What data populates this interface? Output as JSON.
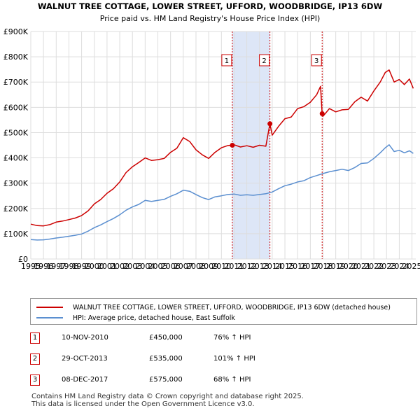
{
  "chart_data": {
    "type": "line",
    "title": "WALNUT TREE COTTAGE, LOWER STREET, UFFORD, WOODBRIDGE, IP13 6DW",
    "subtitle": "Price paid vs. HM Land Registry's House Price Index (HPI)",
    "xlim": [
      1995,
      2025.3
    ],
    "ylim": [
      0,
      900000
    ],
    "ytick_values": [
      0,
      100000,
      200000,
      300000,
      400000,
      500000,
      600000,
      700000,
      800000,
      900000
    ],
    "ytick_labels": [
      "£0",
      "£100K",
      "£200K",
      "£300K",
      "£400K",
      "£500K",
      "£600K",
      "£700K",
      "£800K",
      "£900K"
    ],
    "xtick_values": [
      1995,
      1996,
      1997,
      1998,
      1999,
      2000,
      2001,
      2002,
      2003,
      2004,
      2005,
      2006,
      2007,
      2008,
      2009,
      2010,
      2011,
      2012,
      2013,
      2014,
      2015,
      2016,
      2017,
      2018,
      2019,
      2020,
      2021,
      2022,
      2023,
      2024,
      2025
    ],
    "xtick_labels": [
      "1995",
      "1996",
      "1997",
      "1998",
      "1999",
      "2000",
      "2001",
      "2002",
      "2003",
      "2004",
      "2005",
      "2006",
      "2007",
      "2008",
      "2009",
      "2010",
      "2011",
      "2012",
      "2013",
      "2014",
      "2015",
      "2016",
      "2017",
      "2018",
      "2019",
      "2020",
      "2021",
      "2022",
      "2023",
      "2024",
      "2025"
    ],
    "grid": true,
    "series": [
      {
        "name": "WALNUT TREE COTTAGE, LOWER STREET, UFFORD, WOODBRIDGE, IP13 6DW (detached house)",
        "color": "#cc0000",
        "x": [
          1995.0,
          1995.5,
          1996.0,
          1996.5,
          1997.0,
          1997.5,
          1998.0,
          1998.5,
          1999.0,
          1999.5,
          2000.0,
          2000.5,
          2001.0,
          2001.5,
          2002.0,
          2002.5,
          2003.0,
          2003.5,
          2004.0,
          2004.5,
          2005.0,
          2005.5,
          2006.0,
          2006.5,
          2007.0,
          2007.5,
          2008.0,
          2008.5,
          2009.0,
          2009.5,
          2010.0,
          2010.5,
          2010.86,
          2011.0,
          2011.5,
          2012.0,
          2012.5,
          2013.0,
          2013.5,
          2013.82,
          2014.0,
          2014.5,
          2015.0,
          2015.5,
          2016.0,
          2016.5,
          2017.0,
          2017.5,
          2017.8,
          2017.93,
          2018.0,
          2018.5,
          2019.0,
          2019.5,
          2020.0,
          2020.5,
          2021.0,
          2021.5,
          2022.0,
          2022.5,
          2022.9,
          2023.2,
          2023.6,
          2024.0,
          2024.4,
          2024.8,
          2025.1
        ],
        "values": [
          138000,
          132000,
          131000,
          136000,
          146000,
          150000,
          156000,
          162000,
          172000,
          190000,
          218000,
          235000,
          260000,
          278000,
          305000,
          342000,
          365000,
          382000,
          400000,
          390000,
          393000,
          398000,
          422000,
          438000,
          480000,
          465000,
          432000,
          412000,
          398000,
          422000,
          440000,
          449000,
          450000,
          452000,
          443000,
          448000,
          442000,
          450000,
          446000,
          535000,
          490000,
          525000,
          555000,
          562000,
          595000,
          603000,
          620000,
          650000,
          683000,
          575000,
          565000,
          595000,
          582000,
          590000,
          592000,
          622000,
          640000,
          625000,
          665000,
          700000,
          738000,
          748000,
          700000,
          710000,
          690000,
          712000,
          675000
        ]
      },
      {
        "name": "HPI: Average price, detached house, East Suffolk",
        "color": "#5b8fd0",
        "x": [
          1995.0,
          1995.5,
          1996.0,
          1996.5,
          1997.0,
          1997.5,
          1998.0,
          1998.5,
          1999.0,
          1999.5,
          2000.0,
          2000.5,
          2001.0,
          2001.5,
          2002.0,
          2002.5,
          2003.0,
          2003.5,
          2004.0,
          2004.5,
          2005.0,
          2005.5,
          2006.0,
          2006.5,
          2007.0,
          2007.5,
          2008.0,
          2008.5,
          2009.0,
          2009.5,
          2010.0,
          2010.5,
          2011.0,
          2011.5,
          2012.0,
          2012.5,
          2013.0,
          2013.5,
          2014.0,
          2014.5,
          2015.0,
          2015.5,
          2016.0,
          2016.5,
          2017.0,
          2017.5,
          2018.0,
          2018.5,
          2019.0,
          2019.5,
          2020.0,
          2020.5,
          2021.0,
          2021.5,
          2022.0,
          2022.5,
          2022.9,
          2023.2,
          2023.6,
          2024.0,
          2024.4,
          2024.8,
          2025.1
        ],
        "values": [
          77000,
          75000,
          76000,
          79000,
          83000,
          86000,
          90000,
          94000,
          99000,
          110000,
          124000,
          135000,
          148000,
          160000,
          175000,
          193000,
          206000,
          216000,
          232000,
          228000,
          232000,
          236000,
          248000,
          258000,
          272000,
          268000,
          255000,
          243000,
          235000,
          246000,
          250000,
          255000,
          257000,
          252000,
          254000,
          252000,
          255000,
          258000,
          265000,
          278000,
          290000,
          296000,
          305000,
          310000,
          322000,
          330000,
          338000,
          345000,
          350000,
          355000,
          350000,
          362000,
          378000,
          380000,
          398000,
          420000,
          440000,
          452000,
          425000,
          430000,
          420000,
          428000,
          418000
        ]
      }
    ],
    "sales": [
      {
        "label": "1",
        "x": 2010.86,
        "price": 450000,
        "band_end": 2013.82
      },
      {
        "label": "2",
        "x": 2013.82,
        "price": 535000,
        "band_end": 2013.82
      },
      {
        "label": "3",
        "x": 2017.93,
        "price": 575000,
        "band_end": 2017.93
      }
    ],
    "band_color": "#dde6f7",
    "grid_color": "#dddddd",
    "sale_line_color": "#cc0000"
  },
  "legend": {
    "property_label": "WALNUT TREE COTTAGE, LOWER STREET, UFFORD, WOODBRIDGE, IP13 6DW (detached house)",
    "hpi_label": "HPI: Average price, detached house, East Suffolk"
  },
  "transactions": [
    {
      "num": "1",
      "date": "10-NOV-2010",
      "price": "£450,000",
      "hpi": "76% ↑ HPI"
    },
    {
      "num": "2",
      "date": "29-OCT-2013",
      "price": "£535,000",
      "hpi": "101% ↑ HPI"
    },
    {
      "num": "3",
      "date": "08-DEC-2017",
      "price": "£575,000",
      "hpi": "68% ↑ HPI"
    }
  ],
  "footer": {
    "line1": "Contains HM Land Registry data © Crown copyright and database right 2025.",
    "line2": "This data is licensed under the Open Government Licence v3.0."
  }
}
